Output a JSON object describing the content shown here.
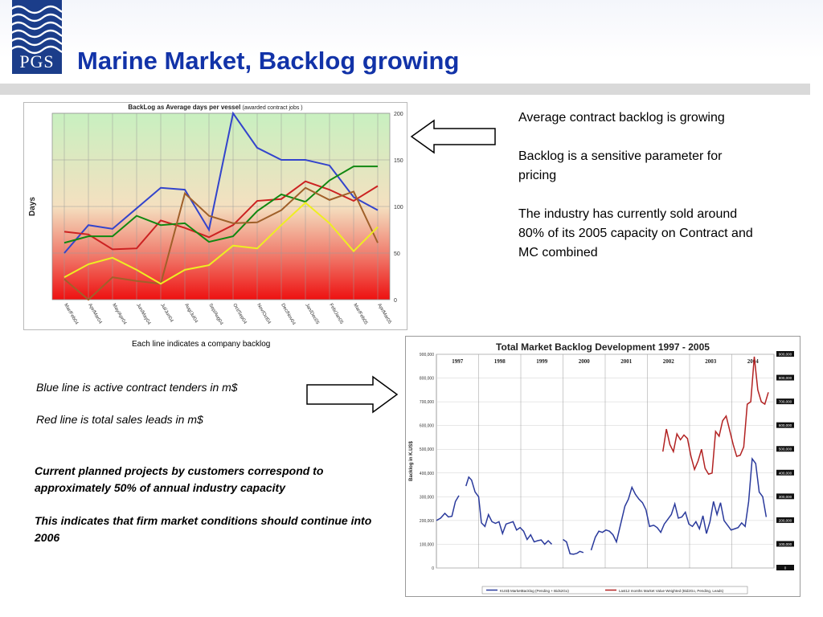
{
  "header": {
    "logo_text": "PGS",
    "title": "Marine Market, Backlog growing"
  },
  "right_bullets": [
    "Average contract backlog is growing",
    "Backlog is a sensitive parameter for pricing",
    "The industry has currently sold around 80% of its 2005 capacity on Contract and MC combined"
  ],
  "caption": "Each line indicates a company backlog",
  "italic_notes": [
    "Blue line is active contract tenders in m$",
    "Red line is total sales leads in m$"
  ],
  "bold_notes": [
    "Current planned projects by customers correspond to approximately 50% of annual industry capacity",
    "This indicates that firm market conditions should continue into 2006"
  ],
  "chart_data": [
    {
      "type": "line",
      "title": "BackLog as Average days per vessel",
      "subtitle": "(awarded contract jobs )",
      "xlabel": "",
      "ylabel": "Days",
      "ylim": [
        0,
        200
      ],
      "yticks": [
        0,
        50,
        100,
        150,
        200
      ],
      "categories": [
        "Mar/Feb04",
        "Apr/Mar04",
        "May/Apr04",
        "Jun/May04",
        "Jul/Jun04",
        "Aug/Jul04",
        "Sep/Aug04",
        "Oct/Sep04",
        "Nov/Oct04",
        "Dec/Nov04",
        "Jan/Dec05",
        "Feb/Jan05",
        "Mar/Feb05",
        "Apr/Mar05"
      ],
      "grid": true,
      "background": "green-to-red gradient",
      "series": [
        {
          "color": "#3344cc",
          "values": [
            50,
            80,
            76,
            98,
            120,
            118,
            75,
            200,
            163,
            150,
            150,
            144,
            110,
            96
          ]
        },
        {
          "color": "#cc2222",
          "values": [
            73,
            70,
            54,
            55,
            85,
            77,
            67,
            80,
            106,
            108,
            127,
            118,
            106,
            122
          ]
        },
        {
          "color": "#118811",
          "values": [
            61,
            68,
            68,
            90,
            80,
            82,
            62,
            68,
            95,
            113,
            105,
            128,
            143,
            143
          ]
        },
        {
          "color": "#a0602a",
          "values": [
            22,
            0,
            24,
            20,
            17,
            114,
            90,
            82,
            83,
            96,
            120,
            107,
            116,
            61
          ]
        },
        {
          "color": "#eeee22",
          "values": [
            24,
            38,
            45,
            32,
            17,
            32,
            37,
            58,
            55,
            80,
            104,
            82,
            52,
            78
          ]
        }
      ]
    },
    {
      "type": "line",
      "title": "Total Market Backlog Development 1997 - 2005",
      "ylabel": "Backlog in K.US$",
      "ylim": [
        0,
        900000
      ],
      "yticks_left": [
        "0",
        "100,000",
        "200,000",
        "300,000",
        "400,000",
        "500,000",
        "600,000",
        "700,000",
        "800,000",
        "900,000"
      ],
      "yticks_right": [
        "0",
        "100,000",
        "200,000",
        "300,000",
        "400,000",
        "500,000",
        "600,000",
        "700,000",
        "800,000",
        "900,000"
      ],
      "years": [
        "1997",
        "1998",
        "1999",
        "2000",
        "2001",
        "2002",
        "2003",
        "2004"
      ],
      "grid": true,
      "series": [
        {
          "name": "KUS$ MarketBacklog (Pending + Bids2Go)",
          "color": "#2a3a9c",
          "segments": [
            [
              [
                0,
                200000
              ],
              [
                0.3,
                210000
              ],
              [
                0.6,
                230000
              ],
              [
                0.85,
                215000
              ],
              [
                1.1,
                218000
              ],
              [
                1.35,
                280000
              ],
              [
                1.6,
                305000
              ]
            ],
            [
              [
                2.1,
                345000
              ],
              [
                2.3,
                383000
              ],
              [
                2.5,
                370000
              ],
              [
                2.75,
                320000
              ],
              [
                3.0,
                300000
              ],
              [
                3.2,
                190000
              ],
              [
                3.45,
                175000
              ],
              [
                3.7,
                225000
              ],
              [
                3.95,
                195000
              ],
              [
                4.2,
                188000
              ],
              [
                4.45,
                195000
              ],
              [
                4.7,
                145000
              ],
              [
                4.95,
                185000
              ],
              [
                5.2,
                190000
              ],
              [
                5.45,
                195000
              ],
              [
                5.7,
                160000
              ],
              [
                5.95,
                170000
              ],
              [
                6.2,
                155000
              ],
              [
                6.45,
                120000
              ],
              [
                6.7,
                140000
              ],
              [
                6.95,
                110000
              ],
              [
                7.2,
                115000
              ],
              [
                7.45,
                118000
              ],
              [
                7.7,
                100000
              ],
              [
                7.95,
                115000
              ],
              [
                8.2,
                100000
              ]
            ],
            [
              [
                9.0,
                120000
              ],
              [
                9.25,
                110000
              ],
              [
                9.5,
                60000
              ],
              [
                9.75,
                58000
              ],
              [
                10.0,
                62000
              ],
              [
                10.2,
                70000
              ],
              [
                10.45,
                65000
              ]
            ],
            [
              [
                11.0,
                75000
              ],
              [
                11.3,
                130000
              ],
              [
                11.55,
                155000
              ],
              [
                11.8,
                150000
              ],
              [
                12.05,
                160000
              ],
              [
                12.3,
                155000
              ],
              [
                12.55,
                140000
              ],
              [
                12.8,
                110000
              ],
              [
                13.1,
                185000
              ],
              [
                13.4,
                260000
              ],
              [
                13.65,
                290000
              ],
              [
                13.9,
                340000
              ],
              [
                14.15,
                310000
              ],
              [
                14.4,
                290000
              ],
              [
                14.65,
                275000
              ],
              [
                14.9,
                245000
              ],
              [
                15.15,
                175000
              ],
              [
                15.45,
                180000
              ],
              [
                15.7,
                170000
              ],
              [
                15.95,
                150000
              ],
              [
                16.2,
                185000
              ],
              [
                16.45,
                205000
              ],
              [
                16.7,
                225000
              ],
              [
                16.95,
                270000
              ],
              [
                17.2,
                210000
              ],
              [
                17.45,
                215000
              ],
              [
                17.7,
                235000
              ],
              [
                17.95,
                185000
              ],
              [
                18.2,
                175000
              ],
              [
                18.45,
                195000
              ],
              [
                18.7,
                165000
              ],
              [
                18.95,
                220000
              ],
              [
                19.2,
                145000
              ],
              [
                19.45,
                195000
              ],
              [
                19.7,
                280000
              ],
              [
                19.95,
                225000
              ],
              [
                20.2,
                275000
              ],
              [
                20.45,
                200000
              ],
              [
                20.7,
                180000
              ],
              [
                20.95,
                160000
              ],
              [
                21.2,
                165000
              ],
              [
                21.45,
                170000
              ],
              [
                21.7,
                190000
              ],
              [
                21.95,
                175000
              ],
              [
                22.2,
                280000
              ],
              [
                22.45,
                460000
              ],
              [
                22.7,
                440000
              ],
              [
                22.95,
                320000
              ],
              [
                23.2,
                300000
              ],
              [
                23.45,
                215000
              ]
            ]
          ]
        },
        {
          "name": "Last12 months Market Value Weighted (Bid2Go, Pending, Leads)",
          "color": "#b22222",
          "segments": [
            [
              [
                16.1,
                490000
              ],
              [
                16.35,
                585000
              ],
              [
                16.6,
                520000
              ],
              [
                16.85,
                490000
              ],
              [
                17.1,
                565000
              ],
              [
                17.35,
                540000
              ],
              [
                17.6,
                560000
              ],
              [
                17.85,
                545000
              ],
              [
                18.1,
                470000
              ],
              [
                18.35,
                415000
              ],
              [
                18.6,
                450000
              ],
              [
                18.85,
                500000
              ],
              [
                19.1,
                420000
              ],
              [
                19.35,
                395000
              ],
              [
                19.6,
                400000
              ],
              [
                19.85,
                575000
              ],
              [
                20.1,
                555000
              ],
              [
                20.35,
                620000
              ],
              [
                20.6,
                640000
              ],
              [
                20.85,
                580000
              ],
              [
                21.1,
                520000
              ],
              [
                21.35,
                470000
              ],
              [
                21.6,
                475000
              ],
              [
                21.85,
                510000
              ],
              [
                22.1,
                690000
              ],
              [
                22.35,
                700000
              ],
              [
                22.6,
                890000
              ],
              [
                22.85,
                750000
              ],
              [
                23.1,
                700000
              ],
              [
                23.35,
                690000
              ],
              [
                23.6,
                740000
              ]
            ]
          ]
        }
      ]
    }
  ]
}
